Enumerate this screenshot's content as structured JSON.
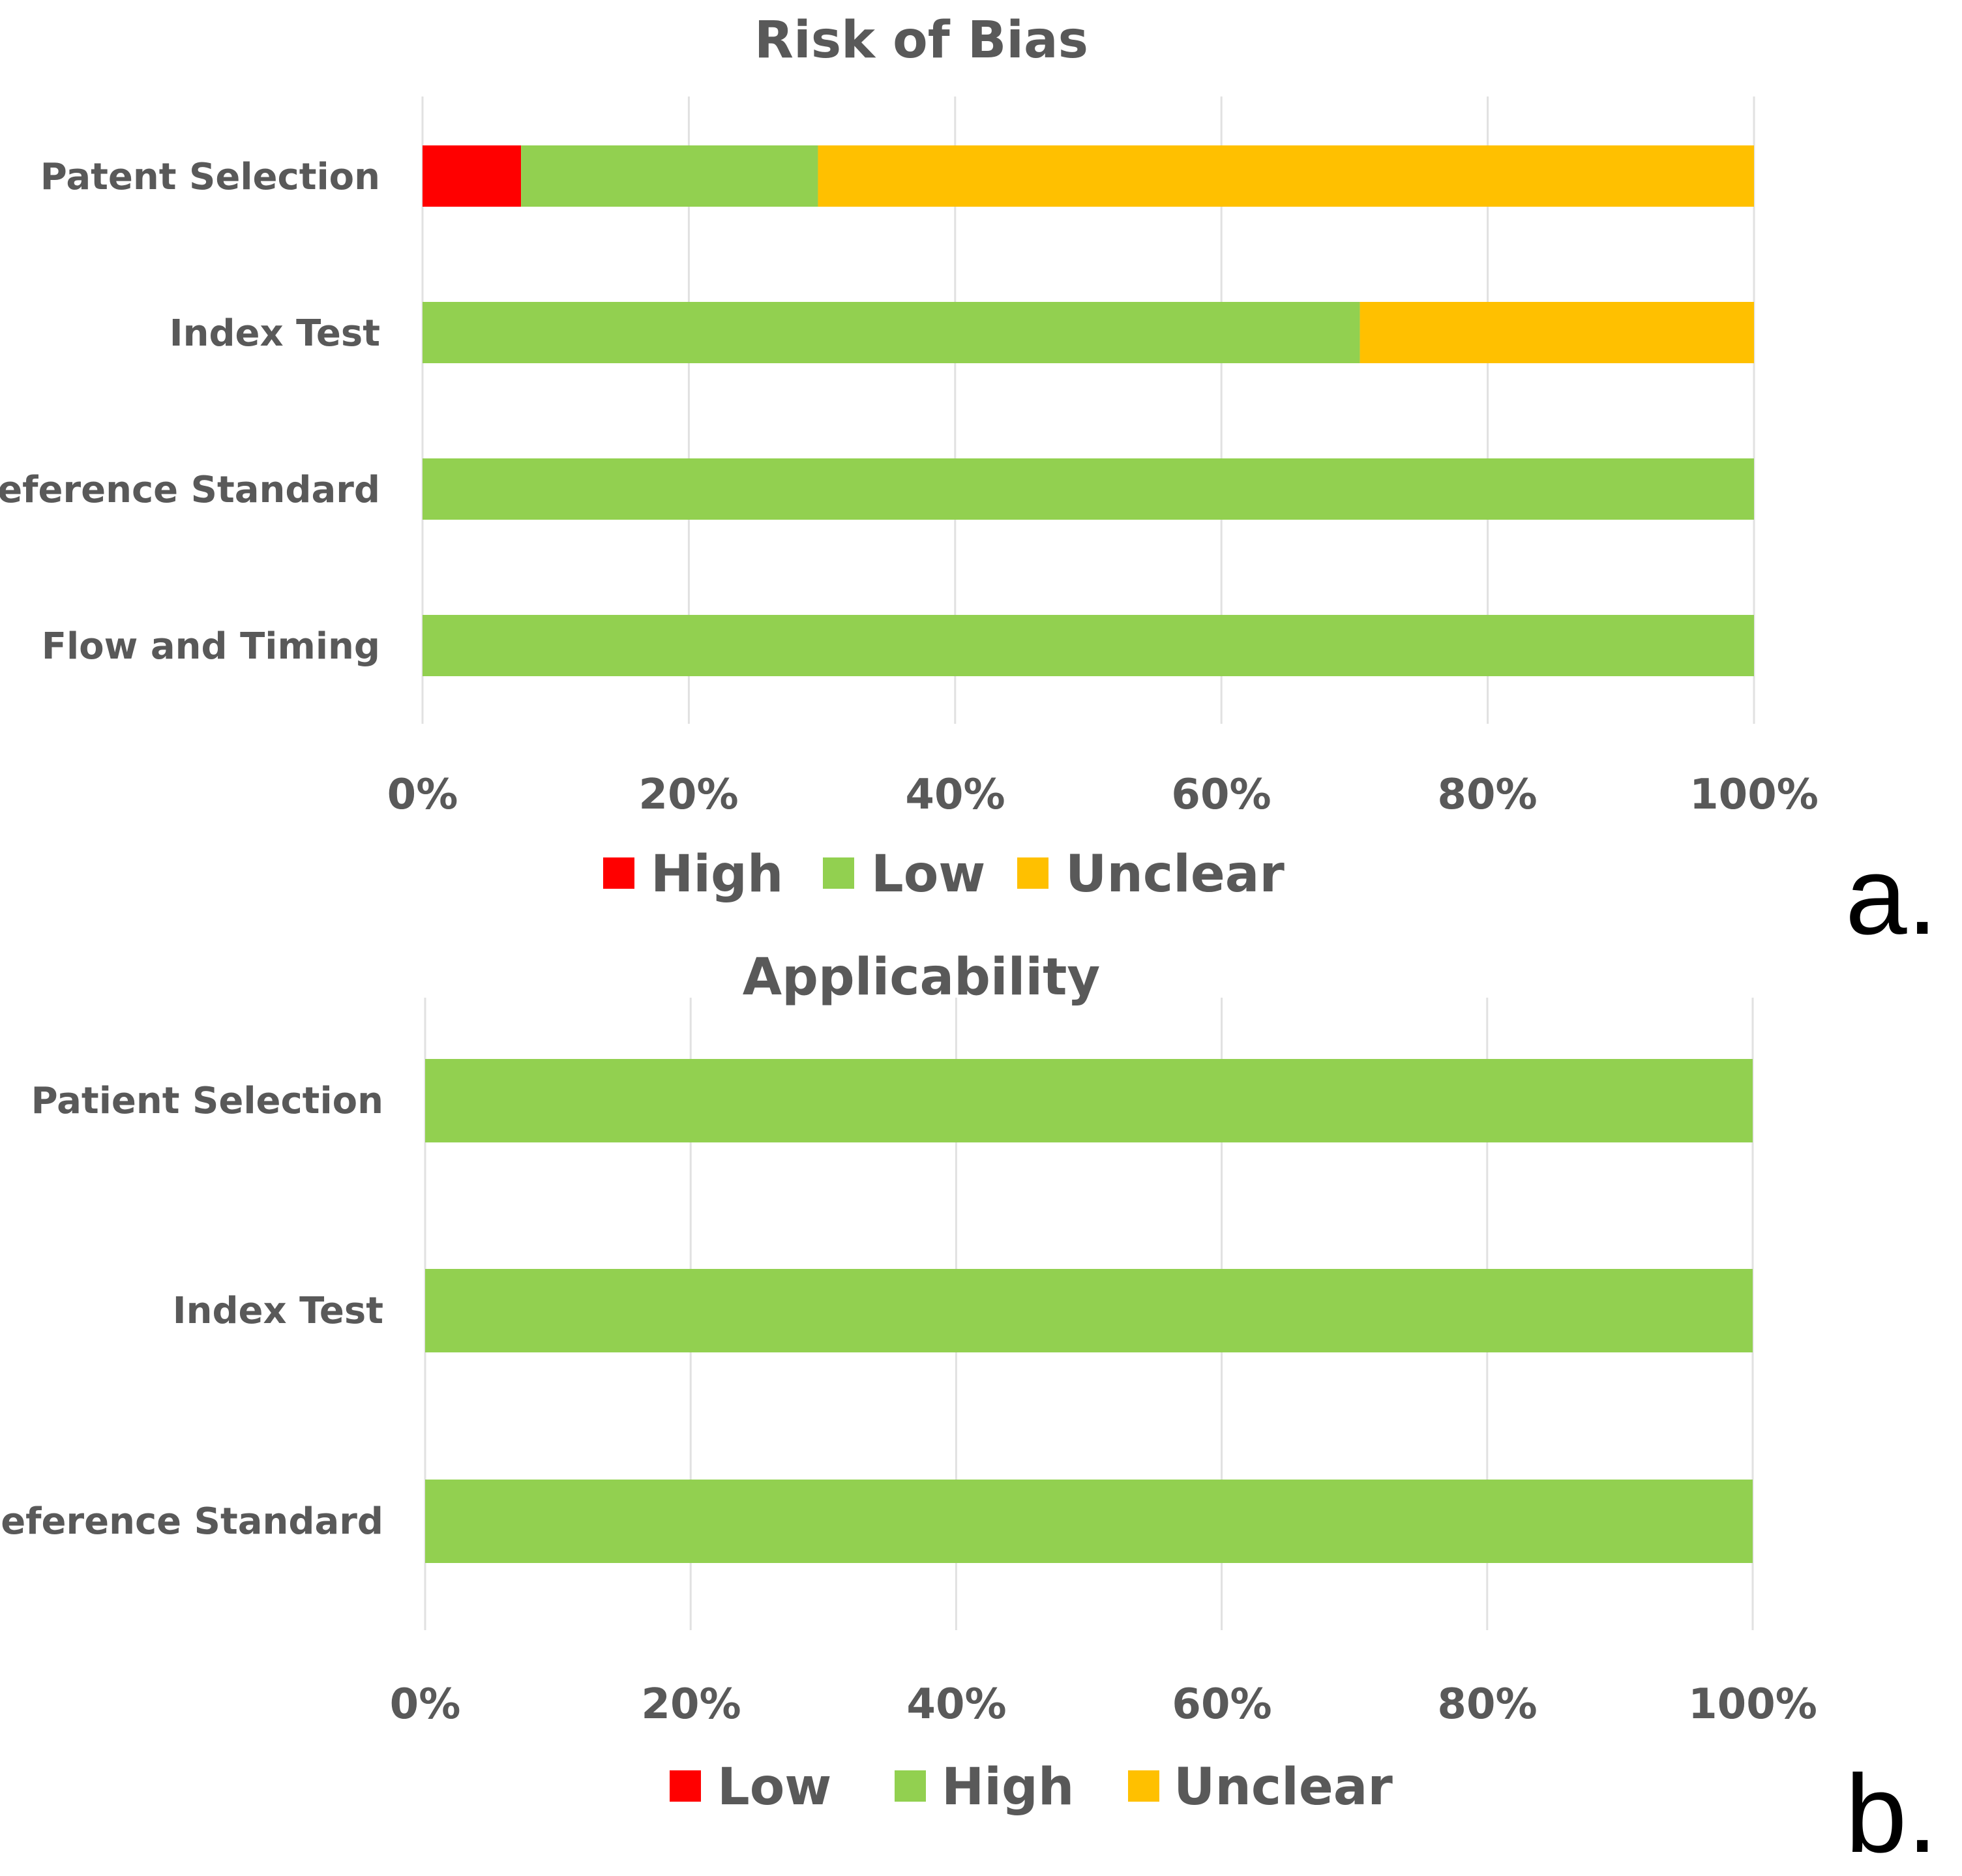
{
  "colors": {
    "red": "#ff0000",
    "green": "#92d050",
    "amber": "#ffc000",
    "text": "#595959",
    "grid": "#e1e1e1"
  },
  "chart_data": [
    {
      "type": "bar",
      "orientation": "horizontal",
      "stacked": "percent",
      "title": "Risk of Bias",
      "panel_label": "a.",
      "categories": [
        "Patent Selection",
        "Index Test",
        "Reference Standard",
        "Flow and Timing"
      ],
      "series": [
        {
          "name": "High",
          "color": "#ff0000",
          "values": [
            7.4,
            0,
            0,
            0
          ]
        },
        {
          "name": "Low",
          "color": "#92d050",
          "values": [
            22.3,
            70.4,
            100,
            100
          ]
        },
        {
          "name": "Unclear",
          "color": "#ffc000",
          "values": [
            70.3,
            29.6,
            0,
            0
          ]
        }
      ],
      "xlim": [
        0,
        100
      ],
      "xticks": [
        "0%",
        "20%",
        "40%",
        "60%",
        "80%",
        "100%"
      ],
      "grid": true,
      "legend_position": "bottom"
    },
    {
      "type": "bar",
      "orientation": "horizontal",
      "stacked": "percent",
      "title": "Applicability",
      "panel_label": "b.",
      "categories": [
        "Patient Selection",
        "Index Test",
        "Reference Standard"
      ],
      "series": [
        {
          "name": "Low",
          "color": "#ff0000",
          "values": [
            0,
            0,
            0
          ]
        },
        {
          "name": "High",
          "color": "#92d050",
          "values": [
            100,
            100,
            100
          ]
        },
        {
          "name": "Unclear",
          "color": "#ffc000",
          "values": [
            0,
            0,
            0
          ]
        }
      ],
      "xlim": [
        0,
        100
      ],
      "xticks": [
        "0%",
        "20%",
        "40%",
        "60%",
        "80%",
        "100%"
      ],
      "grid": true,
      "legend_position": "bottom"
    }
  ]
}
